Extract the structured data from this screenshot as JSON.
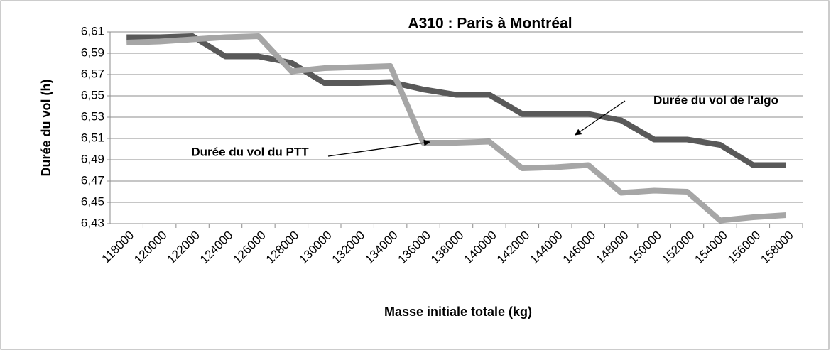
{
  "chart_data": {
    "type": "line",
    "title": "A310 : Paris à Montréal",
    "xlabel": "Masse initiale totale (kg)",
    "ylabel": "Durée du vol (h)",
    "categories": [
      "118000",
      "120000",
      "122000",
      "124000",
      "126000",
      "128000",
      "130000",
      "132000",
      "134000",
      "136000",
      "138000",
      "140000",
      "142000",
      "144000",
      "146000",
      "148000",
      "150000",
      "152000",
      "154000",
      "156000",
      "158000"
    ],
    "series": [
      {
        "color": "#595959",
        "values": [
          6.605,
          6.605,
          6.606,
          6.587,
          6.587,
          6.581,
          6.562,
          6.562,
          6.563,
          6.556,
          6.551,
          6.551,
          6.533,
          6.533,
          6.533,
          6.527,
          6.509,
          6.509,
          6.504,
          6.485,
          6.485
        ]
      },
      {
        "color": "#a6a6a6",
        "values": [
          6.6,
          6.601,
          6.603,
          6.605,
          6.606,
          6.573,
          6.576,
          6.577,
          6.578,
          6.506,
          6.506,
          6.507,
          6.482,
          6.483,
          6.485,
          6.459,
          6.461,
          6.46,
          6.433,
          6.436,
          6.438
        ]
      }
    ],
    "annotations": [
      "Durée du vol de l'algo",
      "Durée du vol du PTT"
    ],
    "ylim": [
      6.43,
      6.61
    ],
    "yticks": [
      {
        "value": 6.43,
        "label": "6,43"
      },
      {
        "value": 6.45,
        "label": "6,45"
      },
      {
        "value": 6.47,
        "label": "6,47"
      },
      {
        "value": 6.49,
        "label": "6,49"
      },
      {
        "value": 6.51,
        "label": "6,51"
      },
      {
        "value": 6.53,
        "label": "6,53"
      },
      {
        "value": 6.55,
        "label": "6,55"
      },
      {
        "value": 6.57,
        "label": "6,57"
      },
      {
        "value": 6.59,
        "label": "6,59"
      },
      {
        "value": 6.61,
        "label": "6,61"
      }
    ],
    "grid": true
  }
}
